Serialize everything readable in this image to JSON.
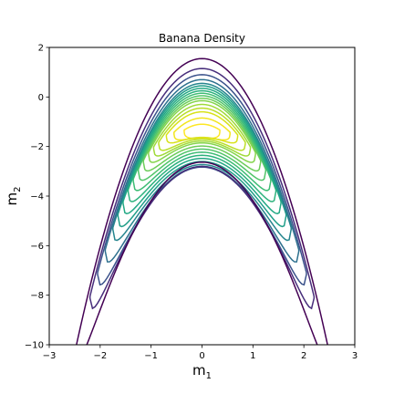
{
  "chart_data": {
    "type": "contour",
    "title": "Banana Density",
    "xlabel": {
      "base": "m",
      "sub": "1"
    },
    "ylabel": {
      "base": "m",
      "sub": "2"
    },
    "xlim": [
      -3,
      3
    ],
    "ylim": [
      -10,
      2
    ],
    "xticks": [
      -3,
      -2,
      -1,
      0,
      1,
      2,
      3
    ],
    "yticks": [
      -10,
      -8,
      -6,
      -4,
      -2,
      0,
      2
    ],
    "xtick_labels": [
      "−3",
      "−2",
      "−1",
      "0",
      "1",
      "2",
      "3"
    ],
    "ytick_labels": [
      "−10",
      "−8",
      "−6",
      "−4",
      "−2",
      "0",
      "2"
    ],
    "grid": false,
    "colormap": "viridis",
    "colormap_stops": [
      "#440154",
      "#472d7b",
      "#3b528b",
      "#2c728e",
      "#21918c",
      "#28ae80",
      "#5ec962",
      "#addc30",
      "#fde725"
    ],
    "density_peak": {
      "m1": 0.0,
      "m2": -1.0
    },
    "contour_levels": [
      {
        "m2_at_zero": -1.1,
        "half_width_at_peak": 0.35,
        "color": "#fde725"
      },
      {
        "m2_at_zero": -0.85,
        "half_width_at_peak": 0.55,
        "color": "#f2e51d"
      },
      {
        "m2_at_zero": -0.6,
        "half_width_at_peak": 0.7,
        "color": "#d8e219"
      },
      {
        "m2_at_zero": -0.45,
        "half_width_at_peak": 0.85,
        "color": "#bade28"
      },
      {
        "m2_at_zero": -0.3,
        "half_width_at_peak": 0.95,
        "color": "#a0da39"
      },
      {
        "m2_at_zero": -0.15,
        "half_width_at_peak": 1.05,
        "color": "#84d44b"
      },
      {
        "m2_at_zero": -0.05,
        "half_width_at_peak": 1.15,
        "color": "#6ccd5a"
      },
      {
        "m2_at_zero": 0.05,
        "half_width_at_peak": 1.25,
        "color": "#52c569"
      },
      {
        "m2_at_zero": 0.15,
        "half_width_at_peak": 1.35,
        "color": "#3dbc74"
      },
      {
        "m2_at_zero": 0.25,
        "half_width_at_peak": 1.45,
        "color": "#2db27d"
      },
      {
        "m2_at_zero": 0.35,
        "half_width_at_peak": 1.55,
        "color": "#22a884"
      },
      {
        "m2_at_zero": 0.45,
        "half_width_at_peak": 1.65,
        "color": "#1f9e89"
      },
      {
        "m2_at_zero": 0.55,
        "half_width_at_peak": 1.75,
        "color": "#25858e"
      },
      {
        "m2_at_zero": 0.7,
        "half_width_at_peak": 1.9,
        "color": "#2d708e"
      },
      {
        "m2_at_zero": 0.9,
        "half_width_at_peak": 2.05,
        "color": "#3b528b"
      },
      {
        "m2_at_zero": 1.15,
        "half_width_at_peak": 2.2,
        "color": "#472d7b"
      },
      {
        "m2_at_zero": 1.55,
        "half_width_at_peak": 2.5,
        "color": "#440154"
      }
    ]
  }
}
